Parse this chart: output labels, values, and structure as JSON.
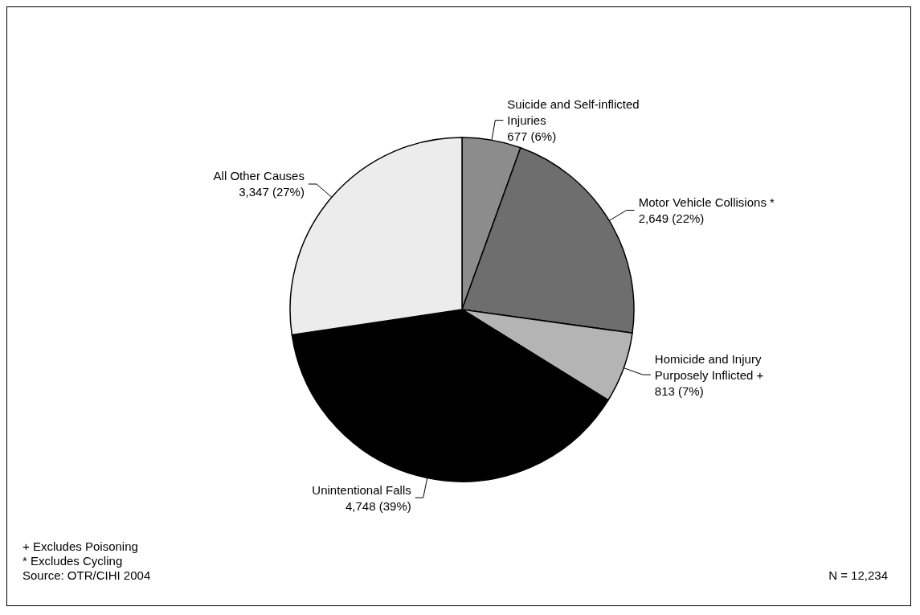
{
  "chart_data": {
    "type": "pie",
    "categories": [
      "Suicide and Self-inflicted Injuries",
      "Motor Vehicle Collisions *",
      "Homicide and Injury Purposely Inflicted +",
      "Unintentional Falls",
      "All Other Causes"
    ],
    "values": [
      677,
      2649,
      813,
      4748,
      3347
    ],
    "value_labels": [
      "677 (6%)",
      "2,649 (22%)",
      "813 (7%)",
      "4,748 (39%)",
      "3,347 (27%)"
    ],
    "colors": [
      "#8c8c8c",
      "#6e6e6e",
      "#b4b4b4",
      "#000000",
      "#ececec"
    ],
    "legend": false,
    "annotations": [
      "+ Excludes Poisoning",
      "* Excludes Cycling",
      "Source: OTR/CIHI 2004",
      "N = 12,234"
    ]
  }
}
